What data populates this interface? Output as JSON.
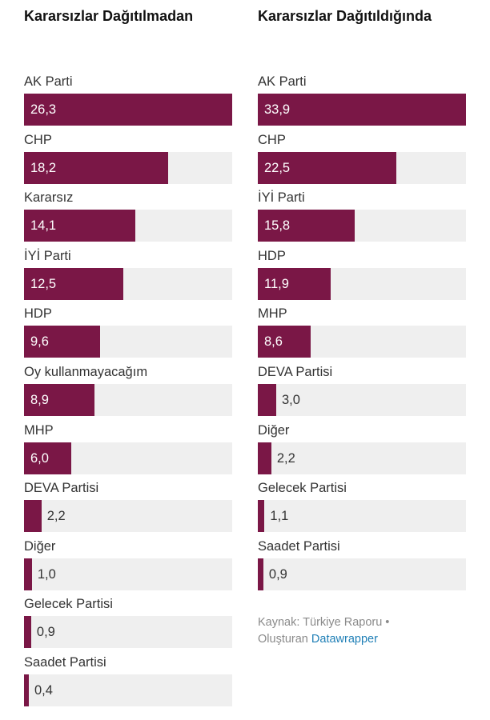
{
  "chart_data": [
    {
      "type": "bar",
      "orientation": "horizontal",
      "title": "Kararsızlar Dağıtılmadan",
      "categories": [
        "AK Parti",
        "CHP",
        "Kararsız",
        "İYİ Parti",
        "HDP",
        "Oy kullanmayacağım",
        "MHP",
        "DEVA Partisi",
        "Diğer",
        "Gelecek Partisi",
        "Saadet Partisi"
      ],
      "values": [
        26.3,
        18.2,
        14.1,
        12.5,
        9.6,
        8.9,
        6.0,
        2.2,
        1.0,
        0.9,
        0.4
      ],
      "value_labels": [
        "26,3",
        "18,2",
        "14,1",
        "12,5",
        "9,6",
        "8,9",
        "6,0",
        "2,2",
        "1,0",
        "0,9",
        "0,4"
      ],
      "xlim": [
        0,
        26.3
      ],
      "grid": false
    },
    {
      "type": "bar",
      "orientation": "horizontal",
      "title": "Kararsızlar Dağıtıldığında",
      "categories": [
        "AK Parti",
        "CHP",
        "İYİ Parti",
        "HDP",
        "MHP",
        "DEVA Partisi",
        "Diğer",
        "Gelecek Partisi",
        "Saadet Partisi"
      ],
      "values": [
        33.9,
        22.5,
        15.8,
        11.9,
        8.6,
        3.0,
        2.2,
        1.1,
        0.9
      ],
      "value_labels": [
        "33,9",
        "22,5",
        "15,8",
        "11,9",
        "8,6",
        "3,0",
        "2,2",
        "1,1",
        "0,9"
      ],
      "xlim": [
        0,
        33.9
      ],
      "grid": false
    }
  ],
  "source": {
    "prefix": "Kaynak: Türkiye Raporu •",
    "created_by": "Oluşturan",
    "tool_link": "Datawrapper"
  },
  "colors": {
    "bar": "#7a1746",
    "track": "#efefef",
    "link": "#1f7fb6"
  }
}
